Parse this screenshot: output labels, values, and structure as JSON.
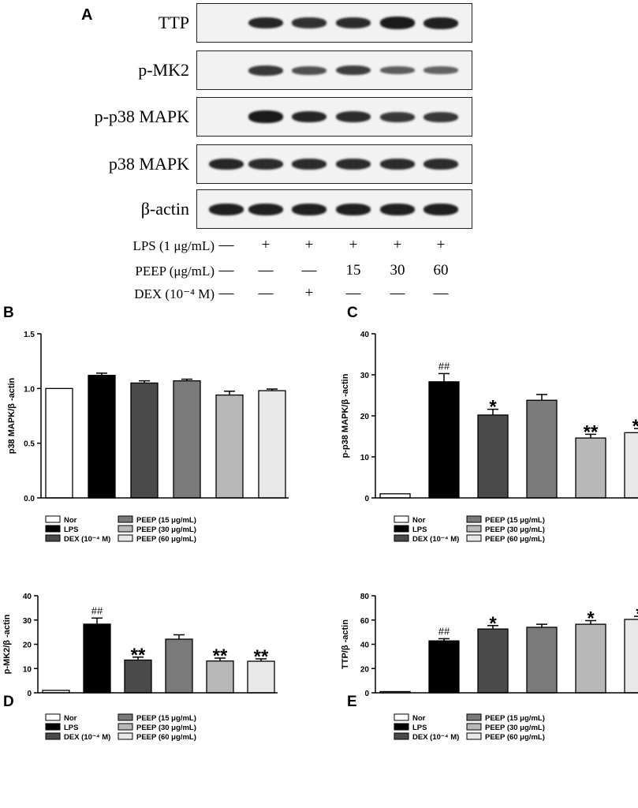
{
  "panel_a": {
    "letter": "A",
    "blots": [
      {
        "label": "TTP",
        "intensities": [
          0,
          0.85,
          0.75,
          0.8,
          0.95,
          0.9
        ]
      },
      {
        "label": "p-MK2",
        "intensities": [
          0,
          0.7,
          0.5,
          0.65,
          0.4,
          0.35
        ]
      },
      {
        "label": "p-p38 MAPK",
        "intensities": [
          0,
          0.95,
          0.85,
          0.8,
          0.7,
          0.7
        ]
      },
      {
        "label": "p38 MAPK",
        "intensities": [
          0.85,
          0.8,
          0.8,
          0.8,
          0.8,
          0.8
        ]
      },
      {
        "label": "β-actin",
        "intensities": [
          0.9,
          0.9,
          0.9,
          0.9,
          0.9,
          0.9
        ]
      }
    ],
    "treatments": [
      {
        "label": "LPS (1 μg/mL)",
        "values": [
          "—",
          "+",
          "+",
          "+",
          "+",
          "+"
        ]
      },
      {
        "label": "PEEP (μg/mL)",
        "values": [
          "—",
          "—",
          "—",
          "15",
          "30",
          "60"
        ]
      },
      {
        "label": "DEX (10⁻⁴ M)",
        "values": [
          "—",
          "—",
          "+",
          "—",
          "—",
          "—"
        ]
      }
    ]
  },
  "legend": {
    "items": [
      {
        "label": "Nor",
        "color": "#ffffff"
      },
      {
        "label": "LPS",
        "color": "#000000"
      },
      {
        "label": "DEX (10⁻⁴ M)",
        "color": "#4a4a4a"
      },
      {
        "label": "PEEP (15 μg/mL)",
        "color": "#7a7a7a"
      },
      {
        "label": "PEEP (30 μg/mL)",
        "color": "#b8b8b8"
      },
      {
        "label": "PEEP (60 μg/mL)",
        "color": "#e8e8e8"
      }
    ]
  },
  "chart_data": [
    {
      "panel": "B",
      "type": "bar",
      "ylabel": "p38 MAPK/β -actin",
      "ylim": [
        0,
        1.5
      ],
      "yticks": [
        0.0,
        0.5,
        1.0,
        1.5
      ],
      "tick_format": "1",
      "categories": [
        "Nor",
        "LPS",
        "DEX (10⁻⁴ M)",
        "PEEP (15 μg/mL)",
        "PEEP (30 μg/mL)",
        "PEEP (60 μg/mL)"
      ],
      "values": [
        1.0,
        1.12,
        1.05,
        1.07,
        0.94,
        0.98
      ],
      "errors": [
        0,
        0.02,
        0.02,
        0.015,
        0.035,
        0.015
      ],
      "annotations": [
        "",
        "",
        "",
        "",
        "",
        ""
      ]
    },
    {
      "panel": "C",
      "type": "bar",
      "ylabel": "p-p38 MAPK/β -actin",
      "ylim": [
        0,
        40
      ],
      "yticks": [
        0,
        10,
        20,
        30,
        40
      ],
      "tick_format": "0",
      "categories": [
        "Nor",
        "LPS",
        "DEX (10⁻⁴ M)",
        "PEEP (15 μg/mL)",
        "PEEP (30 μg/mL)",
        "PEEP (60 μg/mL)"
      ],
      "values": [
        1.0,
        28.3,
        20.2,
        23.8,
        14.6,
        15.9
      ],
      "errors": [
        0,
        2.0,
        1.4,
        1.4,
        0.9,
        1.0
      ],
      "annotations": [
        "",
        "##",
        "*",
        "",
        "**",
        "**"
      ]
    },
    {
      "panel": "D",
      "type": "bar",
      "ylabel": "p-MK2/β -actin",
      "ylim": [
        0,
        40
      ],
      "yticks": [
        0,
        10,
        20,
        30,
        40
      ],
      "tick_format": "0",
      "categories": [
        "Nor",
        "LPS",
        "DEX (10⁻⁴ M)",
        "PEEP (15 μg/mL)",
        "PEEP (30 μg/mL)",
        "PEEP (60 μg/mL)"
      ],
      "values": [
        1.0,
        28.3,
        13.5,
        22.1,
        13.1,
        13.0
      ],
      "errors": [
        0,
        2.5,
        1.2,
        1.8,
        1.2,
        1.0
      ],
      "annotations": [
        "",
        "##",
        "**",
        "",
        "**",
        "**"
      ]
    },
    {
      "panel": "E",
      "type": "bar",
      "ylabel": "TTP/β -actin",
      "ylim": [
        0,
        80
      ],
      "yticks": [
        0,
        20,
        40,
        60,
        80
      ],
      "tick_format": "0",
      "categories": [
        "Nor",
        "LPS",
        "DEX (10⁻⁴ M)",
        "PEEP (15 μg/mL)",
        "PEEP (30 μg/mL)",
        "PEEP (60 μg/mL)"
      ],
      "values": [
        1.0,
        42.8,
        52.6,
        54.0,
        56.5,
        60.5
      ],
      "errors": [
        0,
        1.8,
        2.8,
        2.5,
        3.0,
        2.5
      ],
      "annotations": [
        "",
        "##",
        "*",
        "",
        "*",
        "*"
      ]
    }
  ]
}
